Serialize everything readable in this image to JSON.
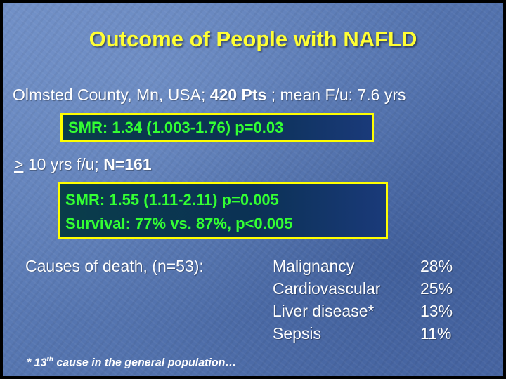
{
  "title": "Outcome of People with NAFLD",
  "line1": {
    "prefix": "Olmsted County, Mn, USA;",
    "bold": "420 Pts",
    "suffix": "; mean F/u: 7.6 yrs"
  },
  "box1": {
    "text": "SMR: 1.34 (1.003-1.76) p=0.03"
  },
  "line2": {
    "symbol": ">",
    "prefix": "10 yrs f/u;",
    "bold": "N=161"
  },
  "box2": {
    "line1": "SMR: 1.55 (1.11-2.11) p=0.005",
    "line2": "Survival: 77% vs. 87%, p<0.005"
  },
  "causes": {
    "label": "Causes of death, (n=53):",
    "items": [
      {
        "name": "Malignancy",
        "pct": "28%"
      },
      {
        "name": "Cardiovascular",
        "pct": "25%"
      },
      {
        "name": "Liver disease*",
        "pct": "13%"
      },
      {
        "name": "Sepsis",
        "pct": "11%"
      }
    ]
  },
  "footnote": {
    "pre": "* 13",
    "sup": "th",
    "post": "cause in the general population…"
  },
  "colors": {
    "title": "#ffff33",
    "box_border": "#ffff00",
    "box_text": "#33ff33",
    "background": "#5575b0"
  }
}
